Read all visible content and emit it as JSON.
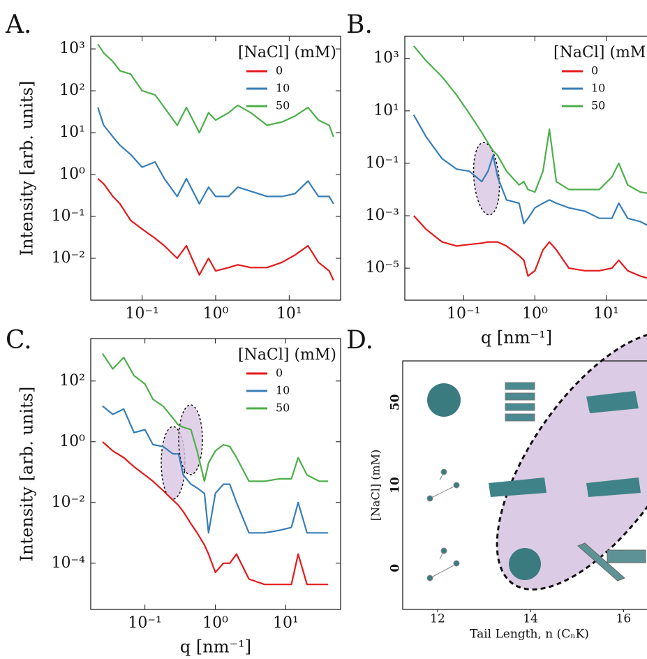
{
  "chart_data": [
    {
      "type": "line",
      "panel_label": "A.",
      "y_label": "Intensity [arb. units]",
      "log_x": true,
      "log_y": true,
      "legend_title": "[NaCl] (mM)",
      "legend": "upper right",
      "xlim": [
        0.02,
        50
      ],
      "ylim": [
        0.001,
        2000
      ],
      "xticks": [
        {
          "value": 0.1,
          "label": "10⁻¹"
        },
        {
          "value": 1,
          "label": "10⁰"
        },
        {
          "value": 10,
          "label": "10¹"
        }
      ],
      "yticks": [
        {
          "value": 1000,
          "label": "10³"
        },
        {
          "value": 100,
          "label": "10²"
        },
        {
          "value": 10,
          "label": "10¹"
        },
        {
          "value": 1,
          "label": "10⁰"
        },
        {
          "value": 0.1,
          "label": "10⁻¹"
        },
        {
          "value": 0.01,
          "label": "10⁻²"
        }
      ],
      "x": [
        0.025,
        0.03,
        0.04,
        0.05,
        0.07,
        0.1,
        0.15,
        0.2,
        0.3,
        0.4,
        0.6,
        0.8,
        1.0,
        1.5,
        2,
        3,
        5,
        8,
        12,
        18,
        25,
        35,
        40
      ],
      "series": [
        {
          "name": "0",
          "color": "#e41a1c",
          "values": [
            0.8,
            0.6,
            0.3,
            0.2,
            0.08,
            0.05,
            0.03,
            0.02,
            0.01,
            0.02,
            0.004,
            0.01,
            0.005,
            0.006,
            0.007,
            0.006,
            0.006,
            0.008,
            0.012,
            0.02,
            0.008,
            0.005,
            0.003
          ]
        },
        {
          "name": "10",
          "color": "#377eb8",
          "values": [
            40,
            15,
            8,
            5,
            3,
            1.5,
            2,
            0.8,
            0.3,
            0.8,
            0.2,
            0.5,
            0.3,
            0.3,
            0.5,
            0.4,
            0.3,
            0.3,
            0.35,
            0.7,
            0.3,
            0.3,
            0.2
          ]
        },
        {
          "name": "50",
          "color": "#4daf4a",
          "values": [
            1300,
            800,
            500,
            300,
            250,
            100,
            80,
            40,
            15,
            40,
            10,
            30,
            20,
            30,
            45,
            30,
            15,
            18,
            25,
            40,
            20,
            15,
            8
          ]
        }
      ]
    },
    {
      "type": "line",
      "panel_label": "B.",
      "x_label": "q [nm⁻¹]",
      "log_x": true,
      "log_y": true,
      "legend_title": "[NaCl] (mM)",
      "legend": "upper right",
      "xlim": [
        0.015,
        50
      ],
      "ylim": [
        6e-07,
        7000
      ],
      "xticks": [
        {
          "value": 0.1,
          "label": "10⁻¹"
        },
        {
          "value": 1,
          "label": "10⁰"
        },
        {
          "value": 10,
          "label": "10¹"
        }
      ],
      "yticks": [
        {
          "value": 1000,
          "label": "10³"
        },
        {
          "value": 10,
          "label": "10¹"
        },
        {
          "value": 0.1,
          "label": "10⁻¹"
        },
        {
          "value": 0.001,
          "label": "10⁻³"
        },
        {
          "value": 1e-05,
          "label": "10⁻⁵"
        }
      ],
      "x": [
        0.02,
        0.03,
        0.05,
        0.08,
        0.12,
        0.18,
        0.22,
        0.26,
        0.3,
        0.4,
        0.6,
        0.7,
        0.8,
        1.0,
        1.3,
        1.6,
        2,
        3,
        5,
        8,
        12,
        15,
        20,
        30,
        40
      ],
      "series": [
        {
          "name": "0",
          "color": "#e41a1c",
          "values": [
            0.001,
            0.0003,
            0.0001,
            7e-05,
            8e-05,
            9e-05,
            0.0001,
            0.0001,
            0.0001,
            7e-05,
            3e-05,
            2e-05,
            5e-06,
            8e-06,
            5e-05,
            0.0001,
            5e-05,
            1e-05,
            8e-06,
            8e-06,
            1e-05,
            2e-05,
            8e-06,
            5e-06,
            4e-06
          ]
        },
        {
          "name": "10",
          "color": "#377eb8",
          "values": [
            7,
            1,
            0.15,
            0.06,
            0.05,
            0.02,
            0.05,
            0.2,
            0.03,
            0.004,
            0.003,
            0.0005,
            0.0008,
            0.002,
            0.003,
            0.004,
            0.003,
            0.002,
            0.0015,
            0.0008,
            0.0008,
            0.003,
            0.0008,
            0.0006,
            0.0004
          ]
        },
        {
          "name": "50",
          "color": "#4daf4a",
          "values": [
            3000,
            800,
            200,
            40,
            8,
            1.5,
            0.6,
            0.3,
            0.2,
            0.05,
            0.015,
            0.02,
            0.01,
            0.008,
            0.05,
            2,
            0.02,
            0.01,
            0.01,
            0.01,
            0.03,
            0.1,
            0.015,
            0.008,
            0.007
          ]
        }
      ]
    },
    {
      "type": "line",
      "panel_label": "C.",
      "y_label": "Intensity [arb. units]",
      "x_label": "q [nm⁻¹]",
      "log_x": true,
      "log_y": true,
      "legend_title": "[NaCl] (mM)",
      "legend": "upper right",
      "xlim": [
        0.017,
        60
      ],
      "ylim": [
        3e-06,
        2500
      ],
      "xticks": [
        {
          "value": 0.1,
          "label": "10⁻¹"
        },
        {
          "value": 1,
          "label": "10⁰"
        },
        {
          "value": 10,
          "label": "10¹"
        }
      ],
      "yticks": [
        {
          "value": 100,
          "label": "10²"
        },
        {
          "value": 1,
          "label": "10⁰"
        },
        {
          "value": 0.01,
          "label": "10⁻²"
        },
        {
          "value": 0.0001,
          "label": "10⁻⁴"
        }
      ],
      "x": [
        0.025,
        0.035,
        0.05,
        0.07,
        0.1,
        0.13,
        0.18,
        0.25,
        0.3,
        0.35,
        0.45,
        0.55,
        0.7,
        0.8,
        1,
        1.3,
        1.6,
        2,
        3,
        5,
        8,
        12,
        15,
        20,
        30,
        40
      ],
      "series": [
        {
          "name": "0",
          "color": "#e41a1c",
          "values": [
            1,
            0.5,
            0.3,
            0.15,
            0.08,
            0.05,
            0.025,
            0.012,
            0.008,
            0.005,
            0.002,
            0.001,
            0.0004,
            0.0002,
            5e-05,
            0.0001,
            0.0001,
            0.0002,
            3e-05,
            2e-05,
            2e-05,
            2e-05,
            0.0002,
            2e-05,
            2e-05,
            2e-05
          ]
        },
        {
          "name": "10",
          "color": "#377eb8",
          "values": [
            15,
            8,
            12,
            2,
            2.5,
            0.8,
            0.7,
            0.4,
            0.4,
            0.08,
            0.04,
            0.03,
            0.02,
            0.001,
            0.02,
            0.04,
            0.04,
            0.01,
            0.001,
            0.001,
            0.0012,
            0.0015,
            0.01,
            0.001,
            0.001,
            0.001
          ]
        },
        {
          "name": "50",
          "color": "#4daf4a",
          "values": [
            800,
            250,
            600,
            150,
            80,
            25,
            15,
            6,
            3.5,
            3,
            2.5,
            0.5,
            0.05,
            0.2,
            0.5,
            0.8,
            0.7,
            0.3,
            0.05,
            0.05,
            0.06,
            0.06,
            0.3,
            0.08,
            0.05,
            0.05
          ]
        }
      ]
    },
    {
      "type": "phase",
      "panel_label": "D.",
      "x_label": "Tail Length, n (CₙK)",
      "y_label": "[NaCl] (mM)",
      "xlim": [
        11.25,
        16.7
      ],
      "xticks": [
        12,
        14,
        16
      ],
      "categories": [
        "0",
        "10",
        "50"
      ],
      "category_colors": [
        "#e41a1c",
        "#377eb8",
        "#4daf4a"
      ]
    }
  ]
}
